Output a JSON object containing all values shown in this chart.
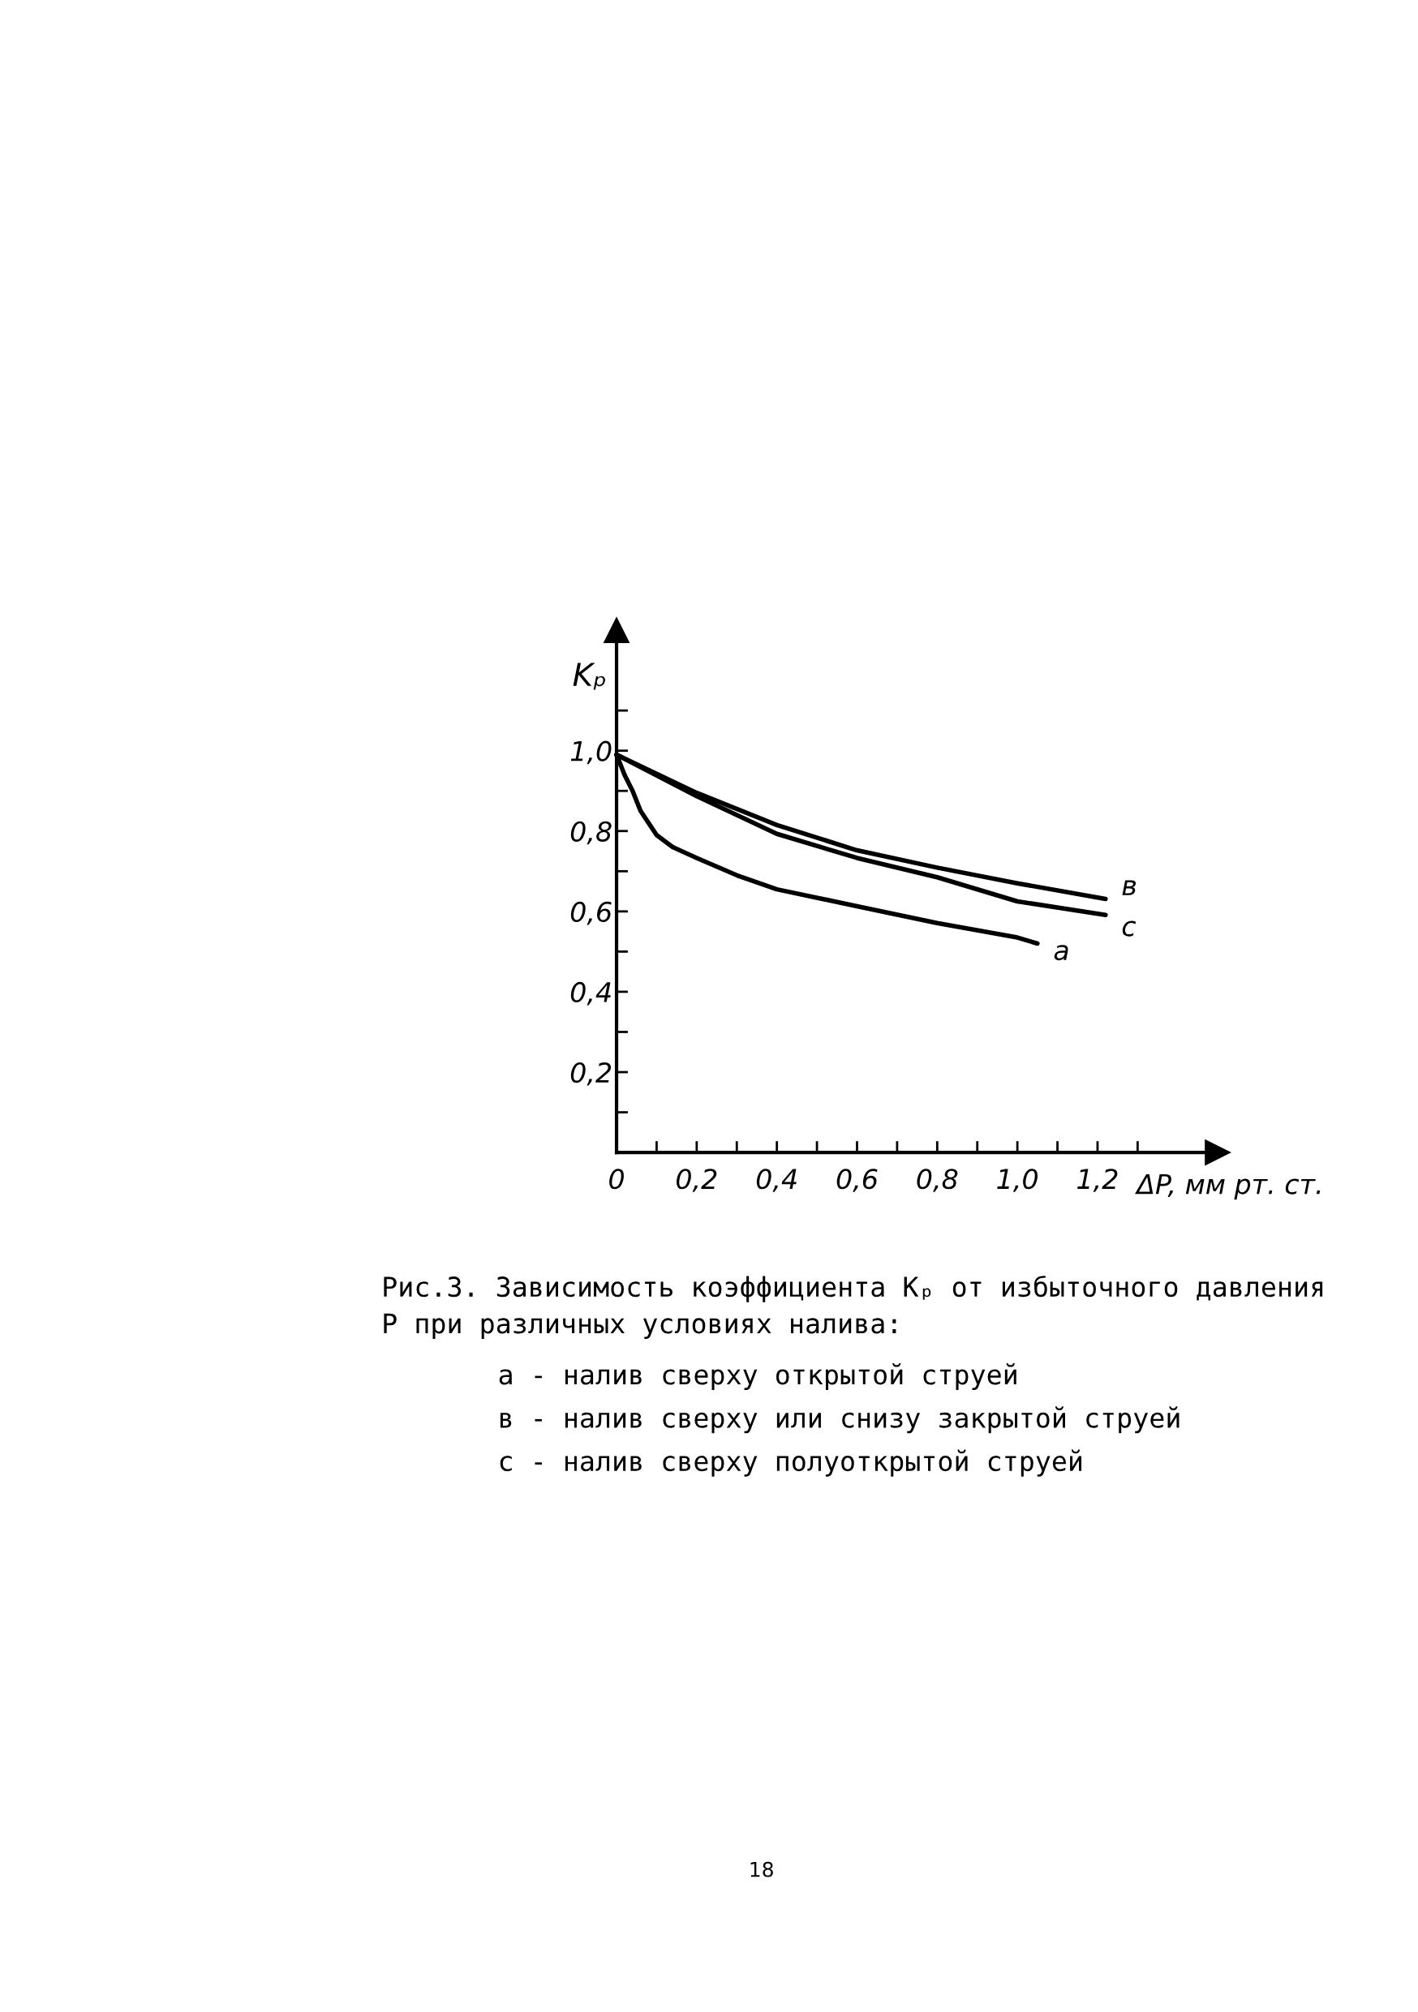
{
  "chart_data": {
    "type": "line",
    "title": "Рис.3. Зависимость коэффициента Kₚ от избыточного давления\nP при различных условиях налива:",
    "xlabel": "ΔP, мм рт. ст.",
    "ylabel": "Kₚ",
    "xlim": [
      0,
      1.5
    ],
    "ylim": [
      0,
      1.3
    ],
    "xticks": [
      0,
      {
        "value": 0.1,
        "label": null
      },
      {
        "value": 0.2,
        "label": "0,2"
      },
      {
        "value": 0.3,
        "label": null
      },
      {
        "value": 0.4,
        "label": "0,4"
      },
      {
        "value": 0.5,
        "label": null
      },
      {
        "value": 0.6,
        "label": "0,6"
      },
      {
        "value": 0.7,
        "label": null
      },
      {
        "value": 0.8,
        "label": "0,8"
      },
      {
        "value": 0.9,
        "label": null
      },
      {
        "value": 1.0,
        "label": "1,0"
      },
      {
        "value": 1.1,
        "label": null
      },
      {
        "value": 1.2,
        "label": "1,2"
      },
      {
        "value": 1.3,
        "label": null
      }
    ],
    "yticks": [
      {
        "value": 0.1,
        "label": null
      },
      {
        "value": 0.2,
        "label": "0,2"
      },
      {
        "value": 0.3,
        "label": null
      },
      {
        "value": 0.4,
        "label": "0,4"
      },
      {
        "value": 0.5,
        "label": null
      },
      {
        "value": 0.6,
        "label": "0,6"
      },
      {
        "value": 0.7,
        "label": null
      },
      {
        "value": 0.8,
        "label": "0,8"
      },
      {
        "value": 0.9,
        "label": null
      },
      {
        "value": 1.0,
        "label": "1,0"
      },
      {
        "value": 1.1,
        "label": null
      }
    ],
    "grid": false,
    "legend": false,
    "marker": "none",
    "line_style": "solid",
    "series": [
      {
        "name": "а",
        "color": "#000000",
        "x": [
          0,
          0.02,
          0.04,
          0.06,
          0.1,
          0.14,
          0.2,
          0.3,
          0.4,
          0.6,
          0.8,
          1.0,
          1.05
        ],
        "values": [
          0.99,
          0.94,
          0.9,
          0.85,
          0.79,
          0.76,
          0.733,
          0.69,
          0.655,
          0.613,
          0.571,
          0.535,
          0.52
        ]
      },
      {
        "name": "в",
        "color": "#000000",
        "x": [
          0,
          0.2,
          0.4,
          0.6,
          0.8,
          1.0,
          1.22
        ],
        "values": [
          0.99,
          0.895,
          0.815,
          0.752,
          0.709,
          0.67,
          0.631
        ]
      },
      {
        "name": "с",
        "color": "#000000",
        "x": [
          0,
          0.2,
          0.4,
          0.6,
          0.8,
          1.0,
          1.22
        ],
        "values": [
          0.99,
          0.887,
          0.793,
          0.733,
          0.685,
          0.625,
          0.591
        ]
      }
    ],
    "annotations": [
      "а - налив сверху открытой струей",
      "в - налив сверху или снизу закрытой струей",
      "с - налив сверху полуоткрытой струей",
      "18"
    ]
  }
}
